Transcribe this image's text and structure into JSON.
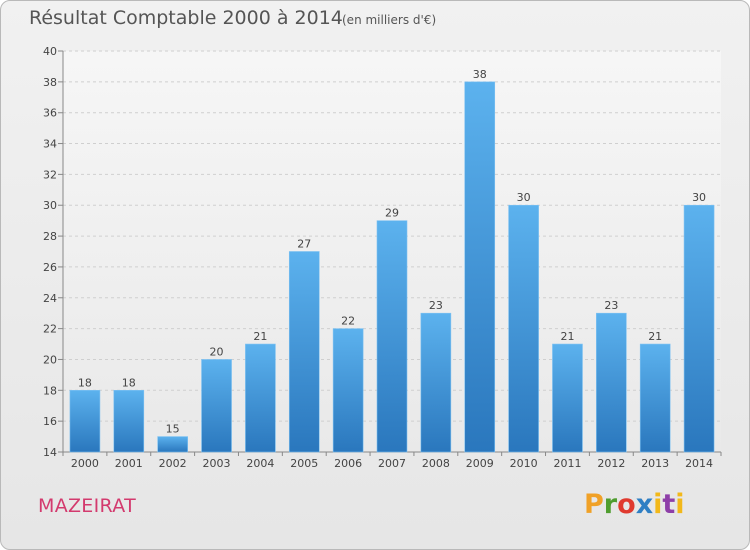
{
  "chart_data": {
    "type": "bar",
    "title": "Résultat Comptable 2000 à 2014",
    "subtitle": "(en milliers d'€)",
    "categories": [
      "2000",
      "2001",
      "2002",
      "2003",
      "2004",
      "2005",
      "2006",
      "2007",
      "2008",
      "2009",
      "2010",
      "2011",
      "2012",
      "2013",
      "2014"
    ],
    "values": [
      18,
      18,
      15,
      20,
      21,
      27,
      22,
      29,
      23,
      38,
      30,
      21,
      23,
      21,
      30
    ],
    "ylim": [
      14,
      40
    ],
    "yticks": [
      14,
      16,
      18,
      20,
      22,
      24,
      26,
      28,
      30,
      32,
      34,
      36,
      38,
      40
    ],
    "grid": "horizontal dashed",
    "bar_color": "#3f97dc",
    "bar_color_dark": "#2a77bd"
  },
  "location": "MAZEIRAT",
  "logo": {
    "text": "Proxiti",
    "colors": [
      "#f0a127",
      "#4f9d2f",
      "#e03a2f",
      "#2f7fc4",
      "#f2b81a",
      "#8e3fa8"
    ]
  }
}
